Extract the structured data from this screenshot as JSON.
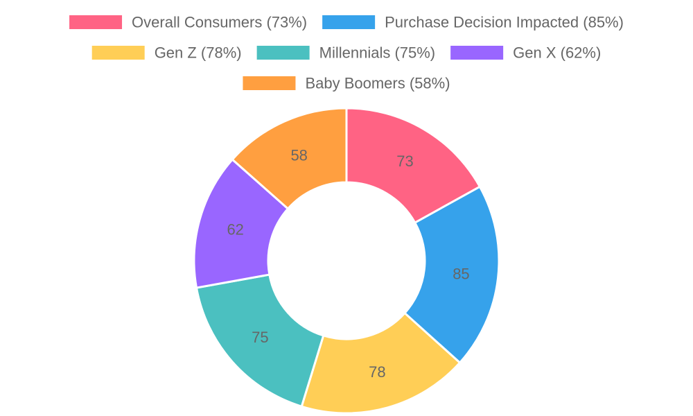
{
  "chart_data": {
    "type": "pie",
    "variant": "doughnut",
    "legend_position": "top",
    "categories": [
      "Overall Consumers (73%)",
      "Purchase Decision Impacted (85%)",
      "Gen Z (78%)",
      "Millennials (75%)",
      "Gen X (62%)",
      "Baby Boomers (58%)"
    ],
    "values": [
      73,
      85,
      78,
      75,
      62,
      58
    ],
    "colors": [
      "#ff6384",
      "#36a2eb",
      "#ffce56",
      "#4bc0c0",
      "#9966ff",
      "#ff9f40"
    ]
  }
}
